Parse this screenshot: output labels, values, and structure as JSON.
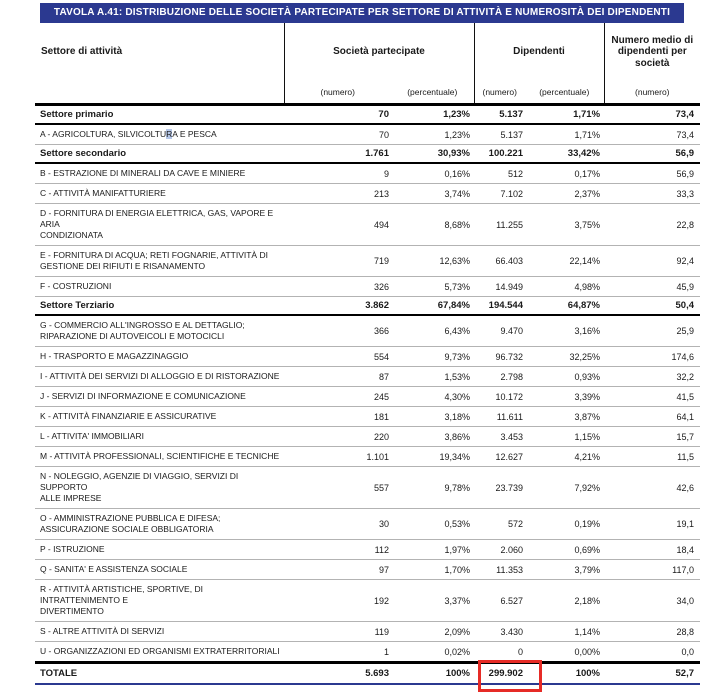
{
  "title": "TAVOLA A.41: DISTRIBUZIONE DELLE SOCIETÀ PARTECIPATE PER SETTORE DI ATTIVITÀ E NUMEROSITÀ DEI DIPENDENTI",
  "colors": {
    "banner_blue": "#2b3990",
    "annotation_red": "#e62b26",
    "separator_gray": "#b3b3b3",
    "highlight_blue": "#b5c7e8"
  },
  "table": {
    "col_groups": {
      "settore": "Settore di attività",
      "societa": "Società partecipate",
      "dipendenti": "Dipendenti",
      "numero_medio": "Numero medio di dipendenti per società"
    },
    "subheaders": {
      "soc_numero": "(numero)",
      "soc_percentuale": "(percentuale)",
      "dip_numero": "(numero)",
      "dip_percentuale": "(percentuale)",
      "medio_numero": "(numero)"
    },
    "rows": [
      {
        "type": "section",
        "label": "Settore primario",
        "values": [
          "70",
          "1,23%",
          "5.137",
          "1,71%",
          "73,4"
        ]
      },
      {
        "type": "item",
        "label": "A - AGRICOLTURA, SILVICOLTURA E PESCA",
        "hl": {
          "pre": "A - AGRICOLTURA, SILVICOLTU",
          "ch": "R",
          "post": "A E PESCA"
        },
        "values": [
          "70",
          "1,23%",
          "5.137",
          "1,71%",
          "73,4"
        ]
      },
      {
        "type": "section",
        "label": "Settore secondario",
        "values": [
          "1.761",
          "30,93%",
          "100.221",
          "33,42%",
          "56,9"
        ]
      },
      {
        "type": "item",
        "label": "B - ESTRAZIONE DI MINERALI DA CAVE E MINIERE",
        "values": [
          "9",
          "0,16%",
          "512",
          "0,17%",
          "56,9"
        ]
      },
      {
        "type": "item",
        "label": "C - ATTIVITÀ MANIFATTURIERE",
        "values": [
          "213",
          "3,74%",
          "7.102",
          "2,37%",
          "33,3"
        ]
      },
      {
        "type": "item",
        "label": "D - FORNITURA DI ENERGIA ELETTRICA, GAS, VAPORE E ARIA\nCONDIZIONATA",
        "values": [
          "494",
          "8,68%",
          "11.255",
          "3,75%",
          "22,8"
        ]
      },
      {
        "type": "item",
        "label": "E - FORNITURA DI ACQUA; RETI FOGNARIE, ATTIVITÀ DI\nGESTIONE DEI RIFIUTI E RISANAMENTO",
        "values": [
          "719",
          "12,63%",
          "66.403",
          "22,14%",
          "92,4"
        ]
      },
      {
        "type": "item",
        "label": "F - COSTRUZIONI",
        "values": [
          "326",
          "5,73%",
          "14.949",
          "4,98%",
          "45,9"
        ]
      },
      {
        "type": "section",
        "label": "Settore Terziario",
        "values": [
          "3.862",
          "67,84%",
          "194.544",
          "64,87%",
          "50,4"
        ]
      },
      {
        "type": "item",
        "label": "G - COMMERCIO ALL'INGROSSO E AL DETTAGLIO;\nRIPARAZIONE DI AUTOVEICOLI E MOTOCICLI",
        "values": [
          "366",
          "6,43%",
          "9.470",
          "3,16%",
          "25,9"
        ]
      },
      {
        "type": "item",
        "label": "H - TRASPORTO E MAGAZZINAGGIO",
        "values": [
          "554",
          "9,73%",
          "96.732",
          "32,25%",
          "174,6"
        ]
      },
      {
        "type": "item",
        "label": "I - ATTIVITÀ DEI SERVIZI DI ALLOGGIO E DI RISTORAZIONE",
        "values": [
          "87",
          "1,53%",
          "2.798",
          "0,93%",
          "32,2"
        ]
      },
      {
        "type": "item",
        "label": "J - SERVIZI DI INFORMAZIONE E COMUNICAZIONE",
        "values": [
          "245",
          "4,30%",
          "10.172",
          "3,39%",
          "41,5"
        ]
      },
      {
        "type": "item",
        "label": "K - ATTIVITÀ FINANZIARIE E ASSICURATIVE",
        "values": [
          "181",
          "3,18%",
          "11.611",
          "3,87%",
          "64,1"
        ]
      },
      {
        "type": "item",
        "label": "L - ATTIVITA' IMMOBILIARI",
        "values": [
          "220",
          "3,86%",
          "3.453",
          "1,15%",
          "15,7"
        ]
      },
      {
        "type": "item",
        "label": "M - ATTIVITÀ PROFESSIONALI, SCIENTIFICHE E TECNICHE",
        "values": [
          "1.101",
          "19,34%",
          "12.627",
          "4,21%",
          "11,5"
        ]
      },
      {
        "type": "item",
        "label": "N - NOLEGGIO, AGENZIE DI VIAGGIO, SERVIZI DI SUPPORTO\nALLE IMPRESE",
        "values": [
          "557",
          "9,78%",
          "23.739",
          "7,92%",
          "42,6"
        ]
      },
      {
        "type": "item",
        "label": "O - AMMINISTRAZIONE PUBBLICA E DIFESA;\nASSICURAZIONE SOCIALE OBBLIGATORIA",
        "values": [
          "30",
          "0,53%",
          "572",
          "0,19%",
          "19,1"
        ]
      },
      {
        "type": "item",
        "label": "P - ISTRUZIONE",
        "values": [
          "112",
          "1,97%",
          "2.060",
          "0,69%",
          "18,4"
        ]
      },
      {
        "type": "item",
        "label": "Q - SANITA' E ASSISTENZA SOCIALE",
        "values": [
          "97",
          "1,70%",
          "11.353",
          "3,79%",
          "117,0"
        ]
      },
      {
        "type": "item",
        "label": "R - ATTIVITÀ ARTISTICHE, SPORTIVE, DI INTRATTENIMENTO E\nDIVERTIMENTO",
        "values": [
          "192",
          "3,37%",
          "6.527",
          "2,18%",
          "34,0"
        ]
      },
      {
        "type": "item",
        "label": "S - ALTRE ATTIVITÀ DI SERVIZI",
        "values": [
          "119",
          "2,09%",
          "3.430",
          "1,14%",
          "28,8"
        ]
      },
      {
        "type": "item",
        "label": "U - ORGANIZZAZIONI ED ORGANISMI EXTRATERRITORIALI",
        "values": [
          "1",
          "0,02%",
          "0",
          "0,00%",
          "0,0"
        ]
      },
      {
        "type": "total",
        "label": "TOTALE",
        "values": [
          "5.693",
          "100%",
          "299.902",
          "100%",
          "52,7"
        ],
        "red_box_value_index": 2
      }
    ]
  },
  "annotation": {
    "red_box_value": "299.902",
    "red_box_row": "TOTALE"
  }
}
